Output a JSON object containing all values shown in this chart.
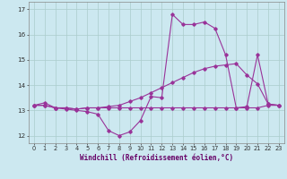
{
  "xlabel": "Windchill (Refroidissement éolien,°C)",
  "bg_color": "#cce8f0",
  "line_color": "#993399",
  "grid_color": "#aacccc",
  "ylim": [
    11.7,
    17.3
  ],
  "xlim": [
    -0.5,
    23.5
  ],
  "yticks": [
    12,
    13,
    14,
    15,
    16,
    17
  ],
  "xticks": [
    0,
    1,
    2,
    3,
    4,
    5,
    6,
    7,
    8,
    9,
    10,
    11,
    12,
    13,
    14,
    15,
    16,
    17,
    18,
    19,
    20,
    21,
    22,
    23
  ],
  "series1_x": [
    0,
    1,
    2,
    3,
    4,
    5,
    6,
    7,
    8,
    9,
    10,
    11,
    12,
    13,
    14,
    15,
    16,
    17,
    18,
    19,
    20,
    21,
    22,
    23
  ],
  "series1_y": [
    13.2,
    13.3,
    13.1,
    13.05,
    13.0,
    12.95,
    12.85,
    12.2,
    12.0,
    12.15,
    12.6,
    13.55,
    13.5,
    16.8,
    16.4,
    16.4,
    16.5,
    16.25,
    15.2,
    13.1,
    13.1,
    13.1,
    13.2,
    13.2
  ],
  "series2_x": [
    0,
    1,
    2,
    3,
    4,
    5,
    6,
    7,
    8,
    9,
    10,
    11,
    12,
    13,
    14,
    15,
    16,
    17,
    18,
    19,
    20,
    21,
    22,
    23
  ],
  "series2_y": [
    13.2,
    13.2,
    13.1,
    13.1,
    13.05,
    13.1,
    13.1,
    13.15,
    13.2,
    13.35,
    13.5,
    13.7,
    13.9,
    14.1,
    14.3,
    14.5,
    14.65,
    14.75,
    14.8,
    14.85,
    14.4,
    14.05,
    13.25,
    13.2
  ],
  "series3_x": [
    0,
    1,
    2,
    3,
    4,
    5,
    6,
    7,
    8,
    9,
    10,
    11,
    12,
    13,
    14,
    15,
    16,
    17,
    18,
    19,
    20,
    21,
    22,
    23
  ],
  "series3_y": [
    13.2,
    13.2,
    13.1,
    13.1,
    13.05,
    13.1,
    13.1,
    13.1,
    13.1,
    13.1,
    13.1,
    13.1,
    13.1,
    13.1,
    13.1,
    13.1,
    13.1,
    13.1,
    13.1,
    13.1,
    13.15,
    15.2,
    13.25,
    13.2
  ]
}
